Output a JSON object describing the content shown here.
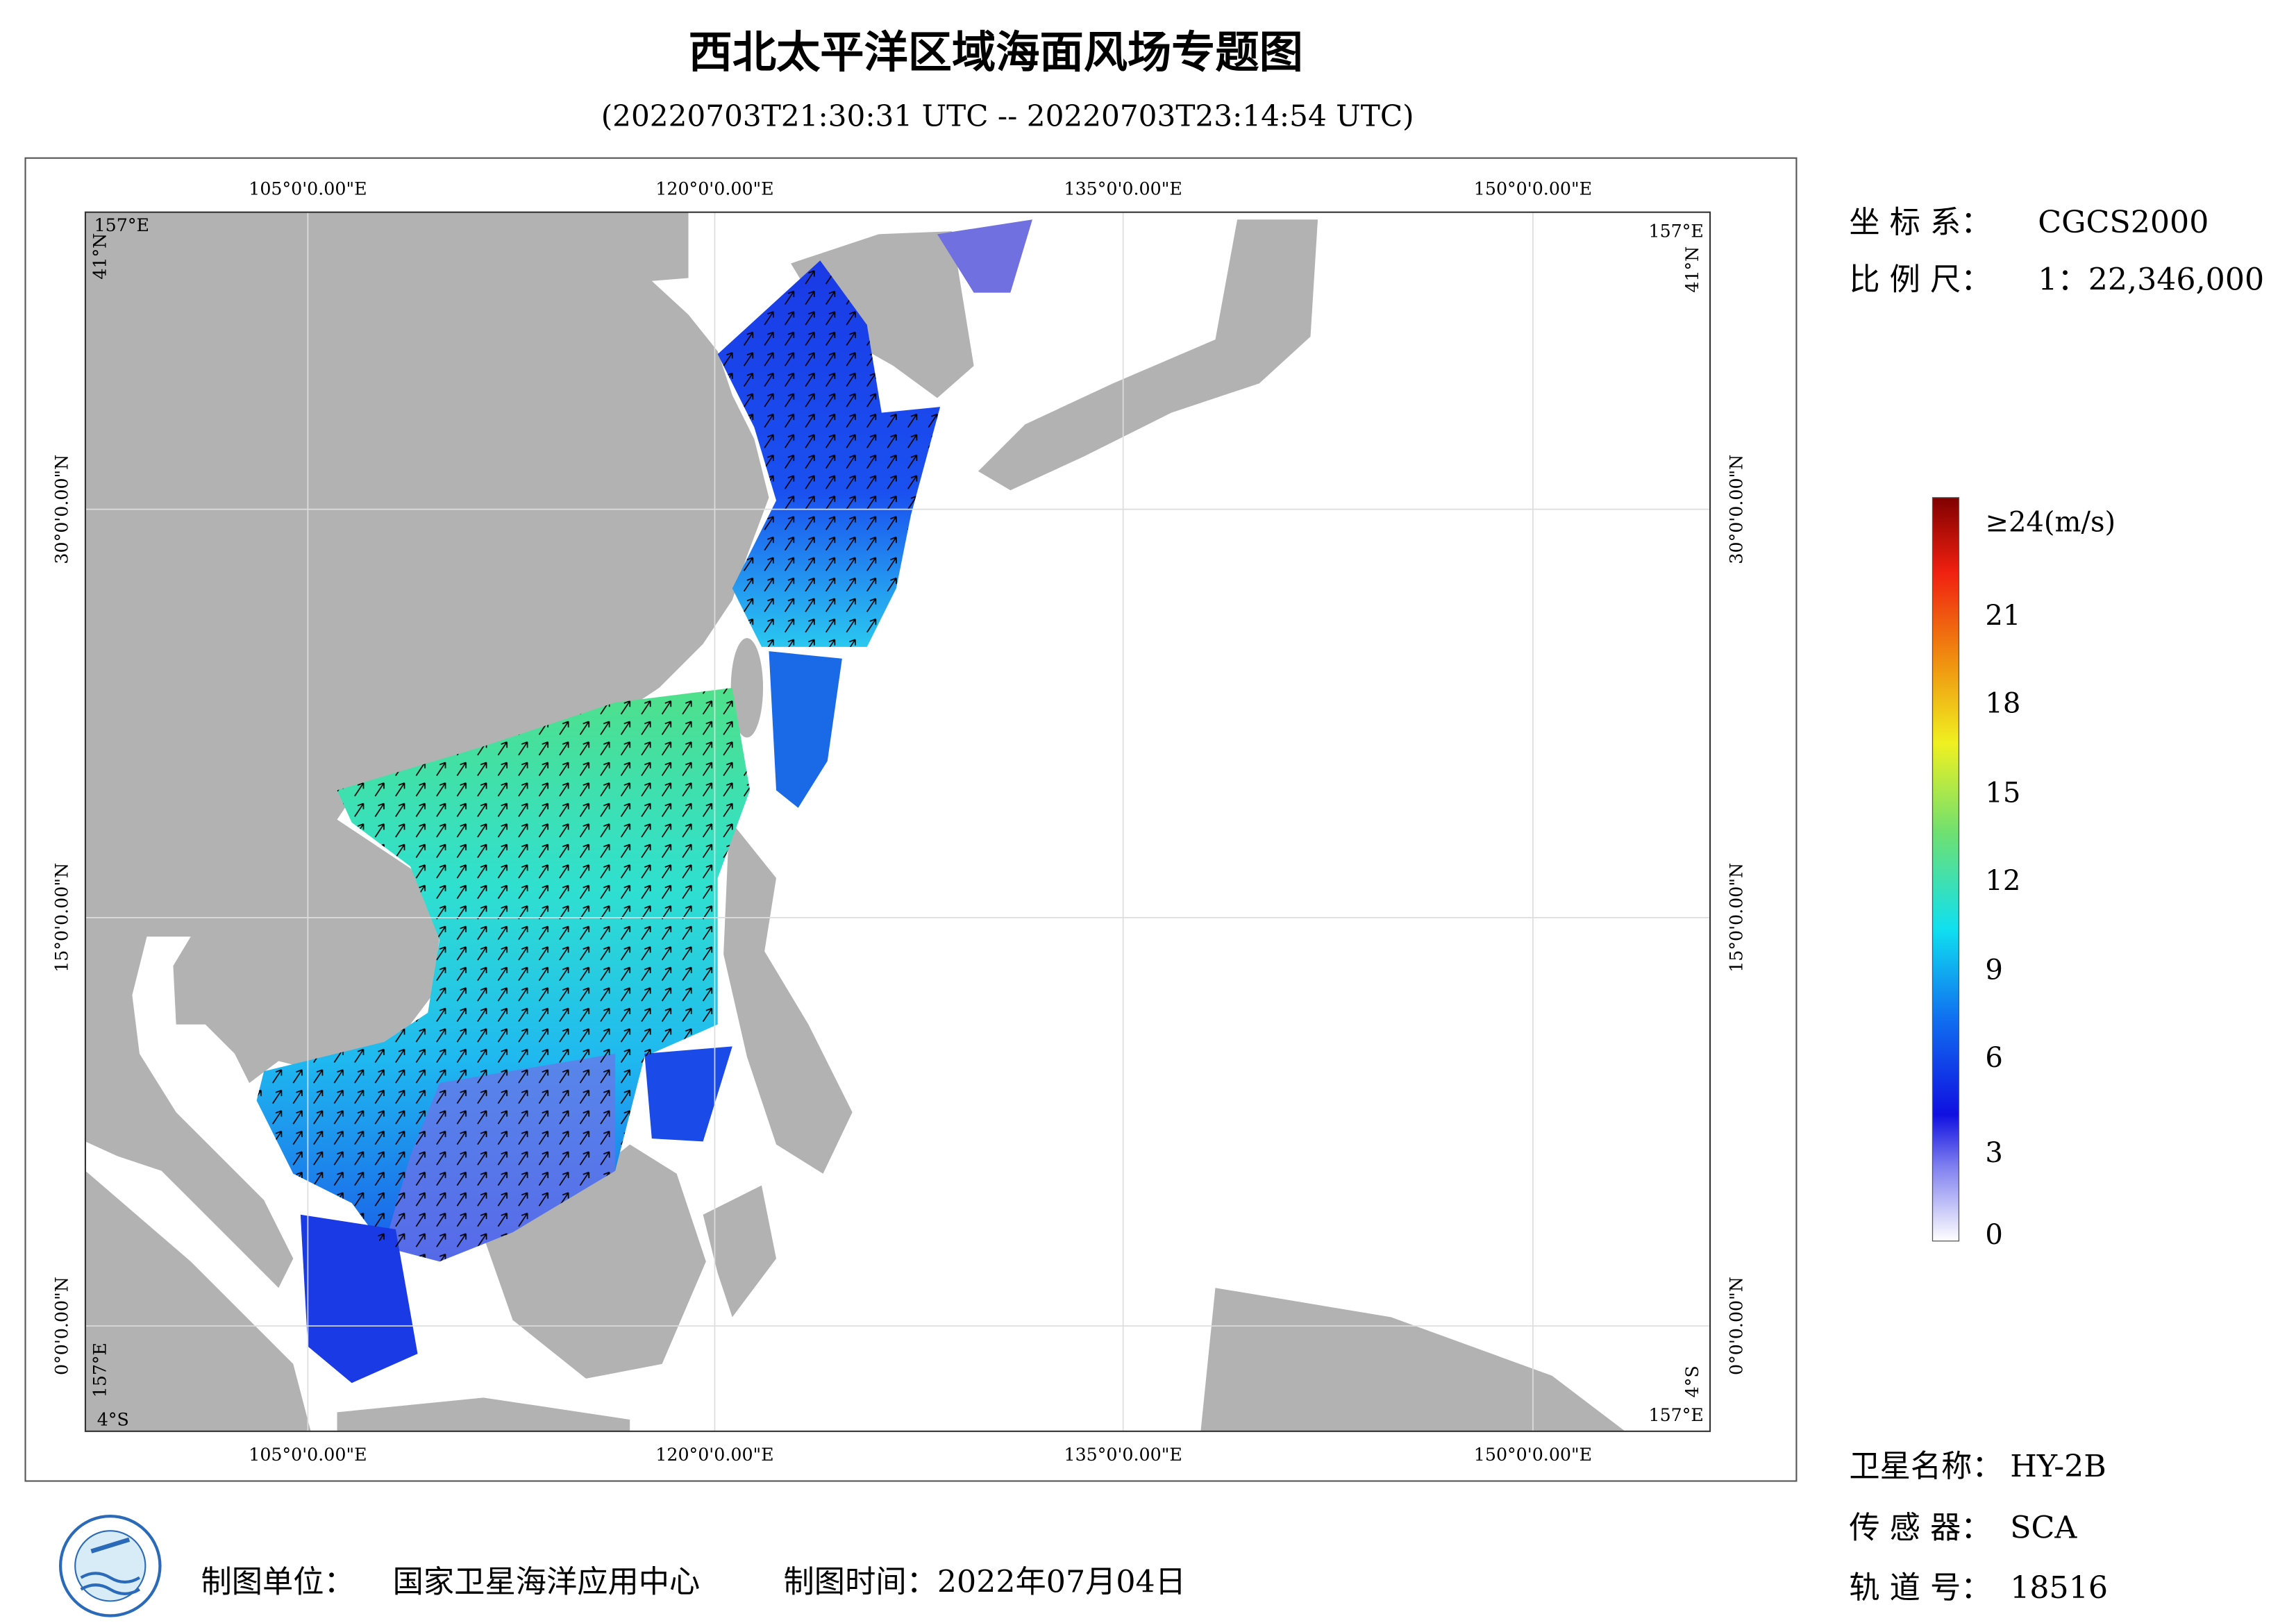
{
  "header": {
    "title": "西北太平洋区域海面风场专题图",
    "subtitle": "(20220703T21:30:31 UTC -- 20220703T23:14:54 UTC)"
  },
  "map": {
    "lon_labels": [
      "105°0'0.00\"E",
      "120°0'0.00\"E",
      "135°0'0.00\"E",
      "150°0'0.00\"E"
    ],
    "lat_labels": [
      "30°0'0.00\"N",
      "15°0'0.00\"N",
      "0°0'0.00\"N"
    ],
    "corner_lon": "157°E",
    "corner_lat_north": "41°N",
    "corner_lat_south": "4°S"
  },
  "legend": {
    "labels": [
      "≥24(m/s)",
      "21",
      "18",
      "15",
      "12",
      "9",
      "6",
      "3",
      "0"
    ]
  },
  "info": {
    "coord_label": "坐 标 系：",
    "coord": "CGCS2000",
    "scale_label": "比 例 尺：",
    "scale": "1：22,346,000",
    "satellite_label": "卫星名称：",
    "satellite": "HY-2B",
    "sensor_label": "传 感 器：",
    "sensor": "SCA",
    "orbit_label": "轨 道 号：",
    "orbit": "18516"
  },
  "footer": {
    "unit_label": "制图单位：",
    "unit": "国家卫星海洋应用中心",
    "time": "制图时间：2022年07月04日"
  }
}
